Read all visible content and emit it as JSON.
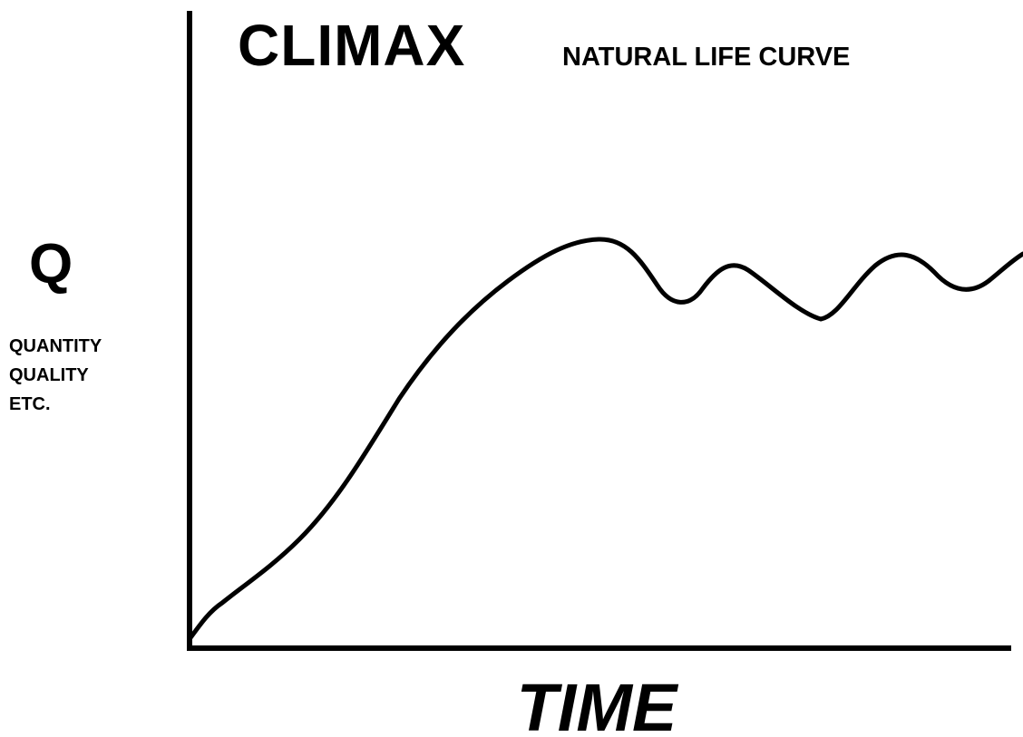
{
  "title": "CLIMAX",
  "subtitle": "NATURAL LIFE CURVE",
  "y_axis": {
    "symbol": "Q",
    "lines": [
      "QUANTITY",
      "QUALITY",
      "ETC."
    ]
  },
  "x_axis": {
    "label": "TIME"
  }
}
